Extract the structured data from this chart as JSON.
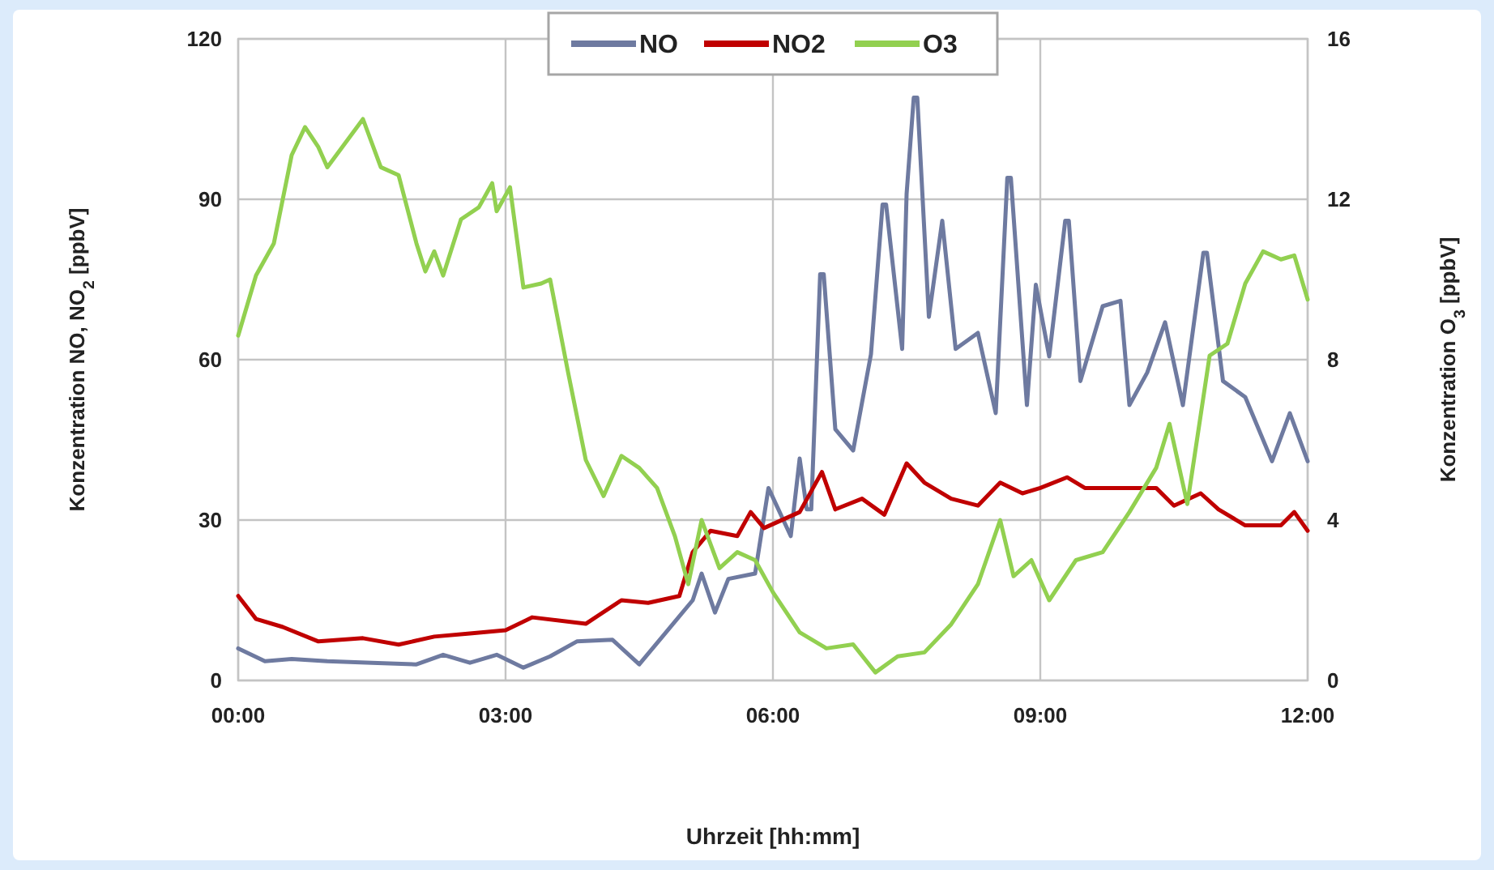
{
  "chart_data": {
    "type": "line",
    "xlabel": "Uhrzeit [hh:mm]",
    "ylabel": "Konzentration NO, NO$_{2}$ [ppbV]",
    "y2label": "Konzentration O$_{3}$ [ppbV]",
    "xlim": [
      0,
      12
    ],
    "xticks": [
      {
        "value": 0,
        "label": "00:00"
      },
      {
        "value": 3,
        "label": "03:00"
      },
      {
        "value": 6,
        "label": "06:00"
      },
      {
        "value": 9,
        "label": "09:00"
      },
      {
        "value": 12,
        "label": "12:00"
      }
    ],
    "ylim": [
      0,
      120
    ],
    "yticks": [
      0,
      30,
      60,
      90,
      120
    ],
    "y2lim": [
      0,
      16
    ],
    "y2ticks": [
      0,
      4,
      8,
      12,
      16
    ],
    "grid": true,
    "legend": "top",
    "line_style": "solid",
    "marker": "none",
    "series": [
      {
        "name": "NO",
        "color": "#6e7aa0",
        "x": [
          0,
          0.3,
          0.6,
          1,
          1.5,
          2,
          2.3,
          2.6,
          2.9,
          3.2,
          3.5,
          3.8,
          4.2,
          4.5,
          4.8,
          5.1,
          5.2,
          5.35,
          5.5,
          5.8,
          5.95,
          6.2,
          6.3,
          6.38,
          6.43,
          6.53,
          6.57,
          6.7,
          6.9,
          7.1,
          7.23,
          7.27,
          7.45,
          7.5,
          7.58,
          7.62,
          7.75,
          7.9,
          8.05,
          8.3,
          8.5,
          8.63,
          8.67,
          8.85,
          8.95,
          9.1,
          9.28,
          9.32,
          9.45,
          9.7,
          9.9,
          10,
          10.2,
          10.4,
          10.6,
          10.83,
          10.87,
          11.05,
          11.3,
          11.6,
          11.8,
          12
        ],
        "values": [
          6,
          3.6,
          4,
          3.6,
          3.3,
          3,
          4.8,
          3.3,
          4.8,
          2.4,
          4.5,
          7.3,
          7.6,
          3,
          9,
          15,
          20,
          12.7,
          19,
          20,
          36,
          27,
          41.5,
          32,
          32,
          76,
          76,
          47,
          43,
          61,
          89,
          89,
          62,
          91,
          109,
          109,
          68,
          86,
          62,
          65,
          50,
          94,
          94,
          51.5,
          74,
          60.6,
          86,
          86,
          56,
          70,
          71,
          51.5,
          57.6,
          67,
          51.5,
          80,
          80,
          56,
          53,
          41,
          50,
          41
        ]
      },
      {
        "name": "NO2",
        "color": "#c00000",
        "x": [
          0,
          0.2,
          0.5,
          0.9,
          1.4,
          1.8,
          2.2,
          2.6,
          3,
          3.3,
          3.9,
          4.3,
          4.6,
          4.95,
          5.1,
          5.3,
          5.6,
          5.75,
          5.9,
          6.3,
          6.55,
          6.7,
          7,
          7.25,
          7.5,
          7.7,
          8,
          8.3,
          8.55,
          8.8,
          9,
          9.3,
          9.5,
          9.9,
          10.3,
          10.5,
          10.8,
          11,
          11.3,
          11.7,
          11.85,
          12
        ],
        "values": [
          15.8,
          11.5,
          10,
          7.3,
          7.9,
          6.7,
          8.2,
          8.8,
          9.4,
          11.8,
          10.6,
          15,
          14.5,
          15.8,
          24,
          28,
          27,
          31.5,
          28.5,
          31.5,
          39,
          32,
          34,
          31,
          40.6,
          37,
          34,
          32.7,
          37,
          35,
          36,
          38,
          36,
          36,
          36,
          32.7,
          35,
          32,
          29,
          29,
          31.5,
          28
        ]
      },
      {
        "name": "O3",
        "color": "#92d050",
        "axis": "y2",
        "x": [
          0,
          0.2,
          0.4,
          0.6,
          0.75,
          0.9,
          1,
          1.2,
          1.4,
          1.6,
          1.8,
          2,
          2.1,
          2.2,
          2.3,
          2.5,
          2.7,
          2.85,
          2.9,
          3.05,
          3.2,
          3.4,
          3.5,
          3.7,
          3.9,
          4.1,
          4.3,
          4.5,
          4.7,
          4.9,
          5.05,
          5.2,
          5.4,
          5.6,
          5.8,
          6,
          6.3,
          6.6,
          6.9,
          7.15,
          7.4,
          7.7,
          8,
          8.3,
          8.55,
          8.7,
          8.9,
          9.1,
          9.4,
          9.7,
          10,
          10.3,
          10.45,
          10.65,
          10.9,
          11.1,
          11.3,
          11.5,
          11.7,
          11.85,
          12
        ],
        "values": [
          8.6,
          10.1,
          10.9,
          13.1,
          13.8,
          13.3,
          12.8,
          13.4,
          14,
          12.8,
          12.6,
          10.9,
          10.2,
          10.7,
          10.1,
          11.5,
          11.8,
          12.4,
          11.7,
          12.3,
          9.8,
          9.9,
          10,
          7.7,
          5.5,
          4.6,
          5.6,
          5.3,
          4.8,
          3.6,
          2.4,
          4,
          2.8,
          3.2,
          3,
          2.2,
          1.2,
          0.8,
          0.9,
          0.2,
          0.6,
          0.7,
          1.4,
          2.4,
          4,
          2.6,
          3,
          2,
          3,
          3.2,
          4.2,
          5.3,
          6.4,
          4.4,
          8.1,
          8.4,
          9.9,
          10.7,
          10.5,
          10.6,
          9.5
        ]
      }
    ]
  }
}
